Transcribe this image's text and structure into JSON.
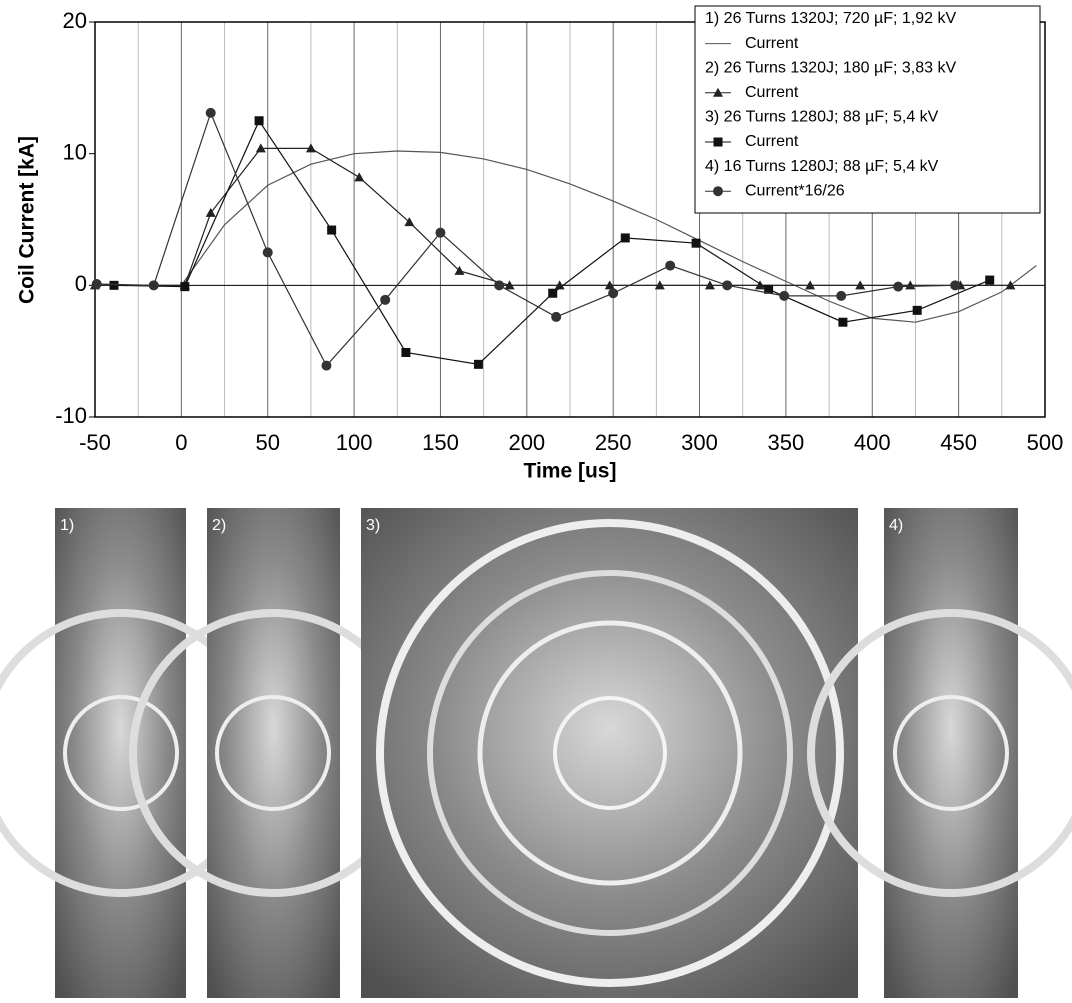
{
  "chart_data": {
    "type": "line",
    "xlabel": "Time [us]",
    "ylabel": "Coil Current [kA]",
    "xlim": [
      -50,
      500
    ],
    "xticks": [
      -50,
      0,
      50,
      100,
      150,
      200,
      250,
      300,
      350,
      400,
      450,
      500
    ],
    "minor_xticks": [
      -25,
      25,
      75,
      125,
      175,
      225,
      275,
      325,
      375,
      425,
      475
    ],
    "ylim": [
      -10,
      20
    ],
    "yticks": [
      -10,
      0,
      10,
      20
    ],
    "grid": true,
    "legend": "upper right",
    "series": [
      {
        "name": "1) 26 Turns 1320J; 720 µF; 1,92 kV",
        "legend_label": "Current",
        "color": "#555555",
        "marker": "none",
        "x": [
          -50,
          0,
          25,
          50,
          75,
          100,
          125,
          150,
          175,
          200,
          225,
          250,
          275,
          300,
          325,
          350,
          375,
          400,
          425,
          450,
          475,
          495
        ],
        "values": [
          0,
          0,
          4.6,
          7.6,
          9.2,
          10.0,
          10.2,
          10.1,
          9.6,
          8.8,
          7.7,
          6.4,
          5.0,
          3.4,
          1.8,
          0.3,
          -1.2,
          -2.5,
          -2.8,
          -2.0,
          -0.5,
          1.5
        ]
      },
      {
        "name": "2) 26 Turns 1320J; 180 µF; 3,83 kV",
        "legend_label": "Current",
        "color": "#222222",
        "marker": "triangle",
        "x": [
          -50,
          2,
          17,
          46,
          75,
          103,
          132,
          161,
          190,
          219,
          248,
          277,
          306,
          335,
          364,
          393,
          422,
          451,
          480
        ],
        "values": [
          0,
          0,
          5.5,
          10.4,
          10.4,
          8.2,
          4.8,
          1.1,
          0,
          0,
          0,
          0,
          0,
          0,
          0,
          0,
          0,
          0,
          0
        ]
      },
      {
        "name": "3) 26 Turns 1280J;  88 µF; 5,4 kV",
        "legend_label": "Current",
        "color": "#111111",
        "marker": "square",
        "x": [
          -39,
          2,
          45,
          87,
          130,
          172,
          215,
          257,
          298,
          340,
          383,
          426,
          468
        ],
        "values": [
          0,
          -0.1,
          12.5,
          4.2,
          -5.1,
          -6.0,
          -0.6,
          3.6,
          3.2,
          -0.3,
          -2.8,
          -1.9,
          0.4
        ]
      },
      {
        "name": "4) 16 Turns 1280J;  88 µF; 5,4 kV",
        "legend_label": "Current*16/26",
        "color": "#333333",
        "marker": "circle",
        "x": [
          -49,
          -16,
          17,
          50,
          84,
          118,
          150,
          184,
          217,
          250,
          283,
          316,
          349,
          382,
          415,
          448
        ],
        "values": [
          0.1,
          0,
          13.1,
          2.5,
          -6.1,
          -1.1,
          4.0,
          0,
          -2.4,
          -0.6,
          1.5,
          0,
          -0.8,
          -0.8,
          -0.1,
          0
        ]
      }
    ]
  },
  "images": [
    {
      "label": "1)"
    },
    {
      "label": "2)"
    },
    {
      "label": "3)"
    },
    {
      "label": "4)"
    }
  ]
}
